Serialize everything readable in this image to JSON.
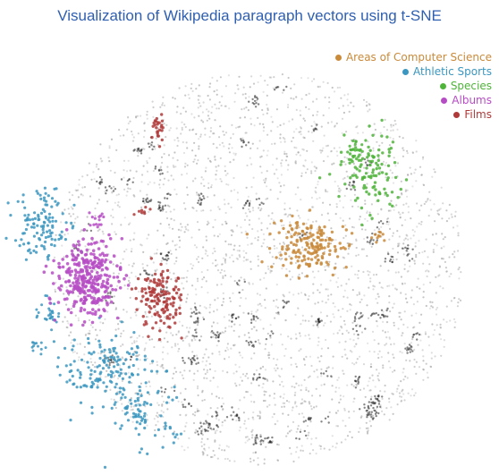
{
  "title": "Visualization of Wikipedia paragraph vectors using t-SNE",
  "chart_data": {
    "type": "scatter",
    "title": "Visualization of Wikipedia paragraph vectors using t-SNE",
    "xlabel": "",
    "ylabel": "",
    "grid": false,
    "axes_visible": false,
    "legend_position": "top-right",
    "background_points_color": "#9a9a9a",
    "series": [
      {
        "name": "Areas of Computer Science",
        "color": "#c98a3a",
        "region": "center-right"
      },
      {
        "name": "Athletic Sports",
        "color": "#3b97c0",
        "region": "left and bottom-left"
      },
      {
        "name": "Species",
        "color": "#4fb43a",
        "region": "upper-right"
      },
      {
        "name": "Albums",
        "color": "#b64cc4",
        "region": "left"
      },
      {
        "name": "Films",
        "color": "#b03a3a",
        "region": "center-left and top"
      }
    ]
  }
}
